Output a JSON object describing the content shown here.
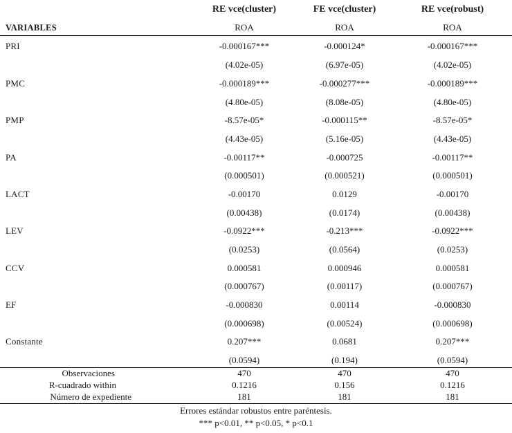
{
  "headers": {
    "col1": "RE vce(cluster)",
    "col2": "FE vce(cluster)",
    "col3": "RE vce(robust)",
    "variables_label": "VARIABLES",
    "dep1": "ROA",
    "dep2": "ROA",
    "dep3": "ROA"
  },
  "rows": [
    {
      "name": "PRI",
      "c1": "-0.000167***",
      "c2": "-0.000124*",
      "c3": "-0.000167***",
      "se1": "(4.02e-05)",
      "se2": "(6.97e-05)",
      "se3": "(4.02e-05)"
    },
    {
      "name": "PMC",
      "c1": "-0.000189***",
      "c2": "-0.000277***",
      "c3": "-0.000189***",
      "se1": "(4.80e-05)",
      "se2": "(8.08e-05)",
      "se3": "(4.80e-05)"
    },
    {
      "name": "PMP",
      "c1": "-8.57e-05*",
      "c2": "-0.000115**",
      "c3": "-8.57e-05*",
      "se1": "(4.43e-05)",
      "se2": "(5.16e-05)",
      "se3": "(4.43e-05)"
    },
    {
      "name": "PA",
      "c1": "-0.00117**",
      "c2": "-0.000725",
      "c3": "-0.00117**",
      "se1": "(0.000501)",
      "se2": "(0.000521)",
      "se3": "(0.000501)"
    },
    {
      "name": "LACT",
      "c1": "-0.00170",
      "c2": "0.0129",
      "c3": "-0.00170",
      "se1": "(0.00438)",
      "se2": "(0.0174)",
      "se3": "(0.00438)"
    },
    {
      "name": "LEV",
      "c1": "-0.0922***",
      "c2": "-0.213***",
      "c3": "-0.0922***",
      "se1": "(0.0253)",
      "se2": "(0.0564)",
      "se3": "(0.0253)"
    },
    {
      "name": "CCV",
      "c1": "0.000581",
      "c2": "0.000946",
      "c3": "0.000581",
      "se1": "(0.000767)",
      "se2": "(0.00117)",
      "se3": "(0.000767)"
    },
    {
      "name": "EF",
      "c1": "-0.000830",
      "c2": "0.00114",
      "c3": "-0.000830",
      "se1": "(0.000698)",
      "se2": "(0.00524)",
      "se3": "(0.000698)"
    },
    {
      "name": "Constante",
      "c1": "0.207***",
      "c2": "0.0681",
      "c3": "0.207***",
      "se1": "(0.0594)",
      "se2": "(0.194)",
      "se3": "(0.0594)"
    }
  ],
  "stats": [
    {
      "label": "Observaciones",
      "c1": "470",
      "c2": "470",
      "c3": "470"
    },
    {
      "label": "R-cuadrado within",
      "c1": "0.1216",
      "c2": "0.156",
      "c3": "0.1216"
    },
    {
      "label": "Número de  expediente",
      "c1": "181",
      "c2": "181",
      "c3": "181"
    }
  ],
  "notes": {
    "line1": "Errores estándar robustos entre paréntesis.",
    "line2": "*** p<0.01, ** p<0.05, * p<0.1"
  }
}
